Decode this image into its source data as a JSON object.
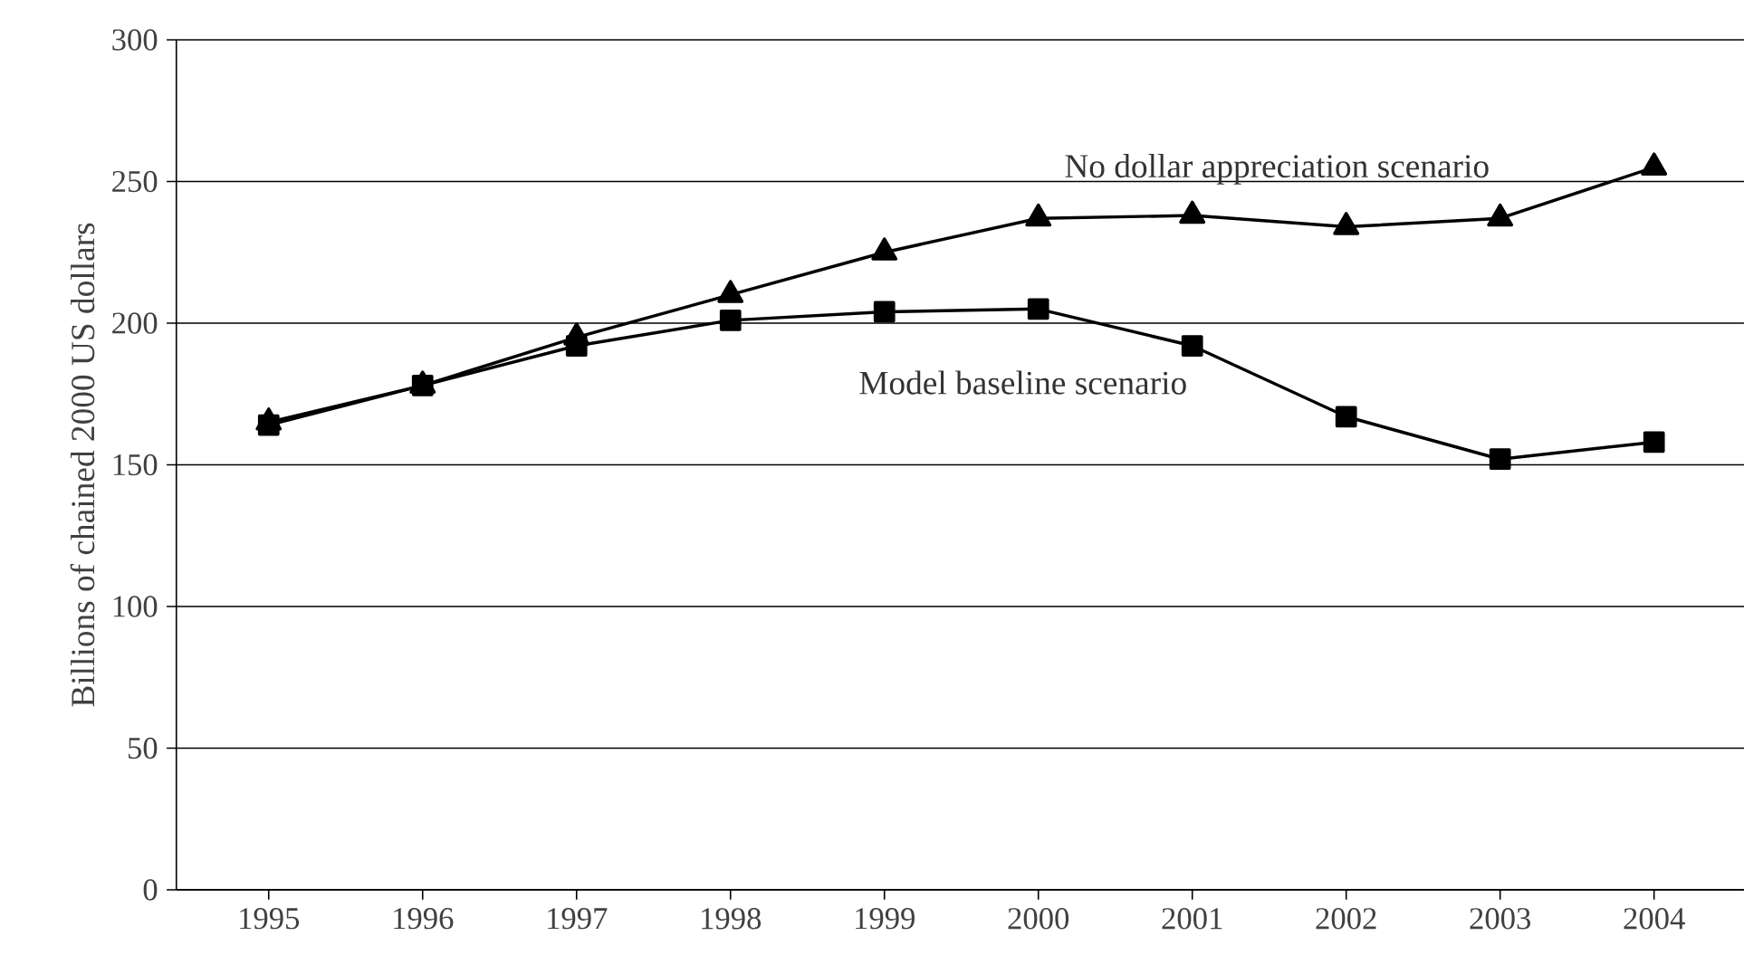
{
  "chart_data": {
    "type": "line",
    "ylabel": "Billions of chained 2000 US dollars",
    "categories": [
      "1995",
      "1996",
      "1997",
      "1998",
      "1999",
      "2000",
      "2001",
      "2002",
      "2003",
      "2004"
    ],
    "series": [
      {
        "name": "No dollar appreciation scenario",
        "color": "#000000",
        "marker": "triangle",
        "values": [
          165,
          178,
          195,
          210,
          225,
          237,
          238,
          234,
          237,
          255
        ]
      },
      {
        "name": "Model baseline scenario",
        "color": "#000000",
        "marker": "square",
        "values": [
          164,
          178,
          192,
          201,
          204,
          205,
          192,
          167,
          152,
          158
        ]
      }
    ],
    "ylim": [
      0,
      300
    ],
    "yticks": [
      0,
      50,
      100,
      150,
      200,
      250,
      300
    ],
    "grid": "y",
    "line_style": "solid",
    "legend": false
  }
}
